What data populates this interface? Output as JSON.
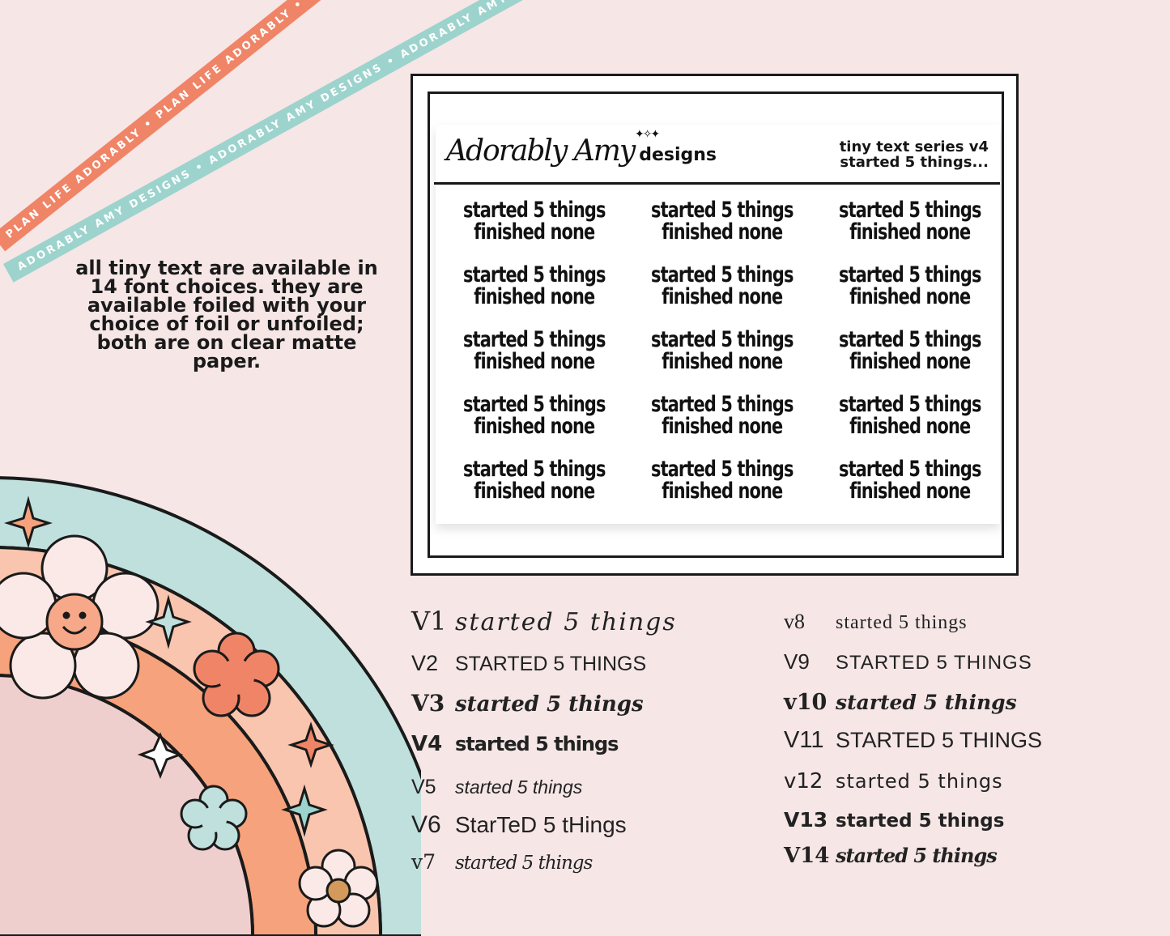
{
  "ribbons": {
    "orange": "PLAN LIFE ADORABLY • PLAN LIFE ADORABLY • PLAN LIFE ADORABLY •",
    "teal": "ADORABLY AMY DESIGNS • ADORABLY AMY DESIGNS • ADORABLY AMY DESIGNS •"
  },
  "description": "all tiny text are available in 14 font choices. they are available foiled with your choice of foil or unfoiled; both are on clear matte paper.",
  "sheet": {
    "brand_script": "Adorably Amy",
    "brand_word": "designs",
    "series_line1": "tiny text series v4",
    "series_line2": "started 5 things...",
    "sticker_line1": "started 5 things",
    "sticker_line2": "finished none",
    "sticker_count": 15
  },
  "fonts_left": [
    {
      "version": "V1",
      "sample": "started 5 things"
    },
    {
      "version": "V2",
      "sample": "STARTED 5 THINGS"
    },
    {
      "version": "V3",
      "sample": "started 5 things"
    },
    {
      "version": "V4",
      "sample": "started 5 things"
    },
    {
      "version": "V5",
      "sample": "started 5 things"
    },
    {
      "version": "V6",
      "sample": "StarTeD 5 tHings"
    },
    {
      "version": "v7",
      "sample": "started 5 things"
    }
  ],
  "fonts_right": [
    {
      "version": "v8",
      "sample": "started 5 things"
    },
    {
      "version": "V9",
      "sample": "STARTED 5 THINGS"
    },
    {
      "version": "v10",
      "sample": "started 5 things"
    },
    {
      "version": "V11",
      "sample": "STARTED 5 THINGS"
    },
    {
      "version": "v12",
      "sample": "started 5 things"
    },
    {
      "version": "V13",
      "sample": "started 5 things"
    },
    {
      "version": "V14",
      "sample": "started 5 things"
    }
  ],
  "colors": {
    "background": "#f6e6e6",
    "ribbon_orange": "#f08466",
    "ribbon_teal": "#9dd3cd",
    "rainbow_teal": "#bfe0dc",
    "rainbow_peach": "#f9c5ae",
    "rainbow_orange": "#f6a27c",
    "rainbow_pink": "#efcfcd"
  }
}
